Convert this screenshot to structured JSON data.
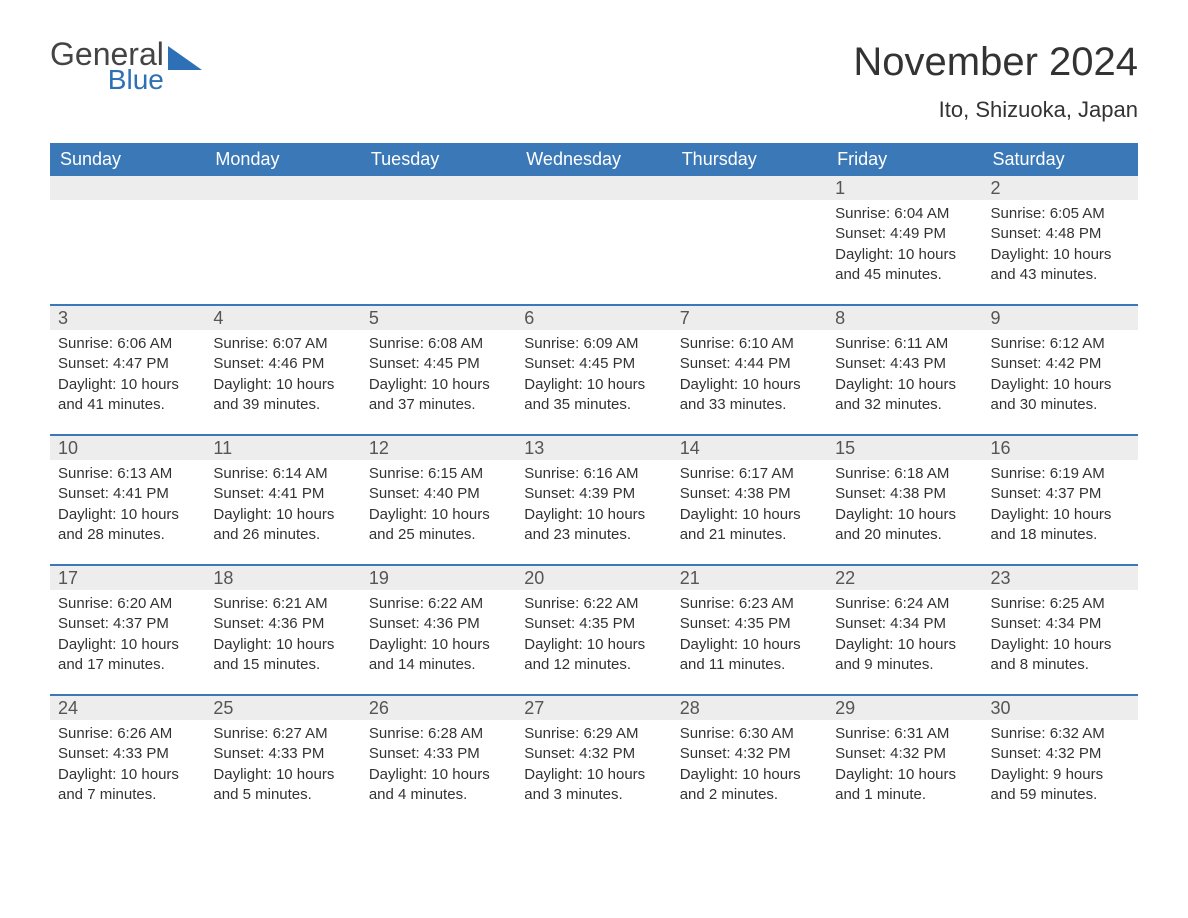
{
  "logo": {
    "word1": "General",
    "word2": "Blue"
  },
  "title": "November 2024",
  "location": "Ito, Shizuoka, Japan",
  "colors": {
    "header_bg": "#3a78b8",
    "header_text": "#ffffff",
    "daynum_bg": "#ededed",
    "row_border": "#3a78b8",
    "body_text": "#333333",
    "logo_blue": "#2d70b5"
  },
  "day_headers": [
    "Sunday",
    "Monday",
    "Tuesday",
    "Wednesday",
    "Thursday",
    "Friday",
    "Saturday"
  ],
  "weeks": [
    [
      {
        "empty": true
      },
      {
        "empty": true
      },
      {
        "empty": true
      },
      {
        "empty": true
      },
      {
        "empty": true
      },
      {
        "day": "1",
        "sunrise": "Sunrise: 6:04 AM",
        "sunset": "Sunset: 4:49 PM",
        "daylight": "Daylight: 10 hours and 45 minutes."
      },
      {
        "day": "2",
        "sunrise": "Sunrise: 6:05 AM",
        "sunset": "Sunset: 4:48 PM",
        "daylight": "Daylight: 10 hours and 43 minutes."
      }
    ],
    [
      {
        "day": "3",
        "sunrise": "Sunrise: 6:06 AM",
        "sunset": "Sunset: 4:47 PM",
        "daylight": "Daylight: 10 hours and 41 minutes."
      },
      {
        "day": "4",
        "sunrise": "Sunrise: 6:07 AM",
        "sunset": "Sunset: 4:46 PM",
        "daylight": "Daylight: 10 hours and 39 minutes."
      },
      {
        "day": "5",
        "sunrise": "Sunrise: 6:08 AM",
        "sunset": "Sunset: 4:45 PM",
        "daylight": "Daylight: 10 hours and 37 minutes."
      },
      {
        "day": "6",
        "sunrise": "Sunrise: 6:09 AM",
        "sunset": "Sunset: 4:45 PM",
        "daylight": "Daylight: 10 hours and 35 minutes."
      },
      {
        "day": "7",
        "sunrise": "Sunrise: 6:10 AM",
        "sunset": "Sunset: 4:44 PM",
        "daylight": "Daylight: 10 hours and 33 minutes."
      },
      {
        "day": "8",
        "sunrise": "Sunrise: 6:11 AM",
        "sunset": "Sunset: 4:43 PM",
        "daylight": "Daylight: 10 hours and 32 minutes."
      },
      {
        "day": "9",
        "sunrise": "Sunrise: 6:12 AM",
        "sunset": "Sunset: 4:42 PM",
        "daylight": "Daylight: 10 hours and 30 minutes."
      }
    ],
    [
      {
        "day": "10",
        "sunrise": "Sunrise: 6:13 AM",
        "sunset": "Sunset: 4:41 PM",
        "daylight": "Daylight: 10 hours and 28 minutes."
      },
      {
        "day": "11",
        "sunrise": "Sunrise: 6:14 AM",
        "sunset": "Sunset: 4:41 PM",
        "daylight": "Daylight: 10 hours and 26 minutes."
      },
      {
        "day": "12",
        "sunrise": "Sunrise: 6:15 AM",
        "sunset": "Sunset: 4:40 PM",
        "daylight": "Daylight: 10 hours and 25 minutes."
      },
      {
        "day": "13",
        "sunrise": "Sunrise: 6:16 AM",
        "sunset": "Sunset: 4:39 PM",
        "daylight": "Daylight: 10 hours and 23 minutes."
      },
      {
        "day": "14",
        "sunrise": "Sunrise: 6:17 AM",
        "sunset": "Sunset: 4:38 PM",
        "daylight": "Daylight: 10 hours and 21 minutes."
      },
      {
        "day": "15",
        "sunrise": "Sunrise: 6:18 AM",
        "sunset": "Sunset: 4:38 PM",
        "daylight": "Daylight: 10 hours and 20 minutes."
      },
      {
        "day": "16",
        "sunrise": "Sunrise: 6:19 AM",
        "sunset": "Sunset: 4:37 PM",
        "daylight": "Daylight: 10 hours and 18 minutes."
      }
    ],
    [
      {
        "day": "17",
        "sunrise": "Sunrise: 6:20 AM",
        "sunset": "Sunset: 4:37 PM",
        "daylight": "Daylight: 10 hours and 17 minutes."
      },
      {
        "day": "18",
        "sunrise": "Sunrise: 6:21 AM",
        "sunset": "Sunset: 4:36 PM",
        "daylight": "Daylight: 10 hours and 15 minutes."
      },
      {
        "day": "19",
        "sunrise": "Sunrise: 6:22 AM",
        "sunset": "Sunset: 4:36 PM",
        "daylight": "Daylight: 10 hours and 14 minutes."
      },
      {
        "day": "20",
        "sunrise": "Sunrise: 6:22 AM",
        "sunset": "Sunset: 4:35 PM",
        "daylight": "Daylight: 10 hours and 12 minutes."
      },
      {
        "day": "21",
        "sunrise": "Sunrise: 6:23 AM",
        "sunset": "Sunset: 4:35 PM",
        "daylight": "Daylight: 10 hours and 11 minutes."
      },
      {
        "day": "22",
        "sunrise": "Sunrise: 6:24 AM",
        "sunset": "Sunset: 4:34 PM",
        "daylight": "Daylight: 10 hours and 9 minutes."
      },
      {
        "day": "23",
        "sunrise": "Sunrise: 6:25 AM",
        "sunset": "Sunset: 4:34 PM",
        "daylight": "Daylight: 10 hours and 8 minutes."
      }
    ],
    [
      {
        "day": "24",
        "sunrise": "Sunrise: 6:26 AM",
        "sunset": "Sunset: 4:33 PM",
        "daylight": "Daylight: 10 hours and 7 minutes."
      },
      {
        "day": "25",
        "sunrise": "Sunrise: 6:27 AM",
        "sunset": "Sunset: 4:33 PM",
        "daylight": "Daylight: 10 hours and 5 minutes."
      },
      {
        "day": "26",
        "sunrise": "Sunrise: 6:28 AM",
        "sunset": "Sunset: 4:33 PM",
        "daylight": "Daylight: 10 hours and 4 minutes."
      },
      {
        "day": "27",
        "sunrise": "Sunrise: 6:29 AM",
        "sunset": "Sunset: 4:32 PM",
        "daylight": "Daylight: 10 hours and 3 minutes."
      },
      {
        "day": "28",
        "sunrise": "Sunrise: 6:30 AM",
        "sunset": "Sunset: 4:32 PM",
        "daylight": "Daylight: 10 hours and 2 minutes."
      },
      {
        "day": "29",
        "sunrise": "Sunrise: 6:31 AM",
        "sunset": "Sunset: 4:32 PM",
        "daylight": "Daylight: 10 hours and 1 minute."
      },
      {
        "day": "30",
        "sunrise": "Sunrise: 6:32 AM",
        "sunset": "Sunset: 4:32 PM",
        "daylight": "Daylight: 9 hours and 59 minutes."
      }
    ]
  ]
}
